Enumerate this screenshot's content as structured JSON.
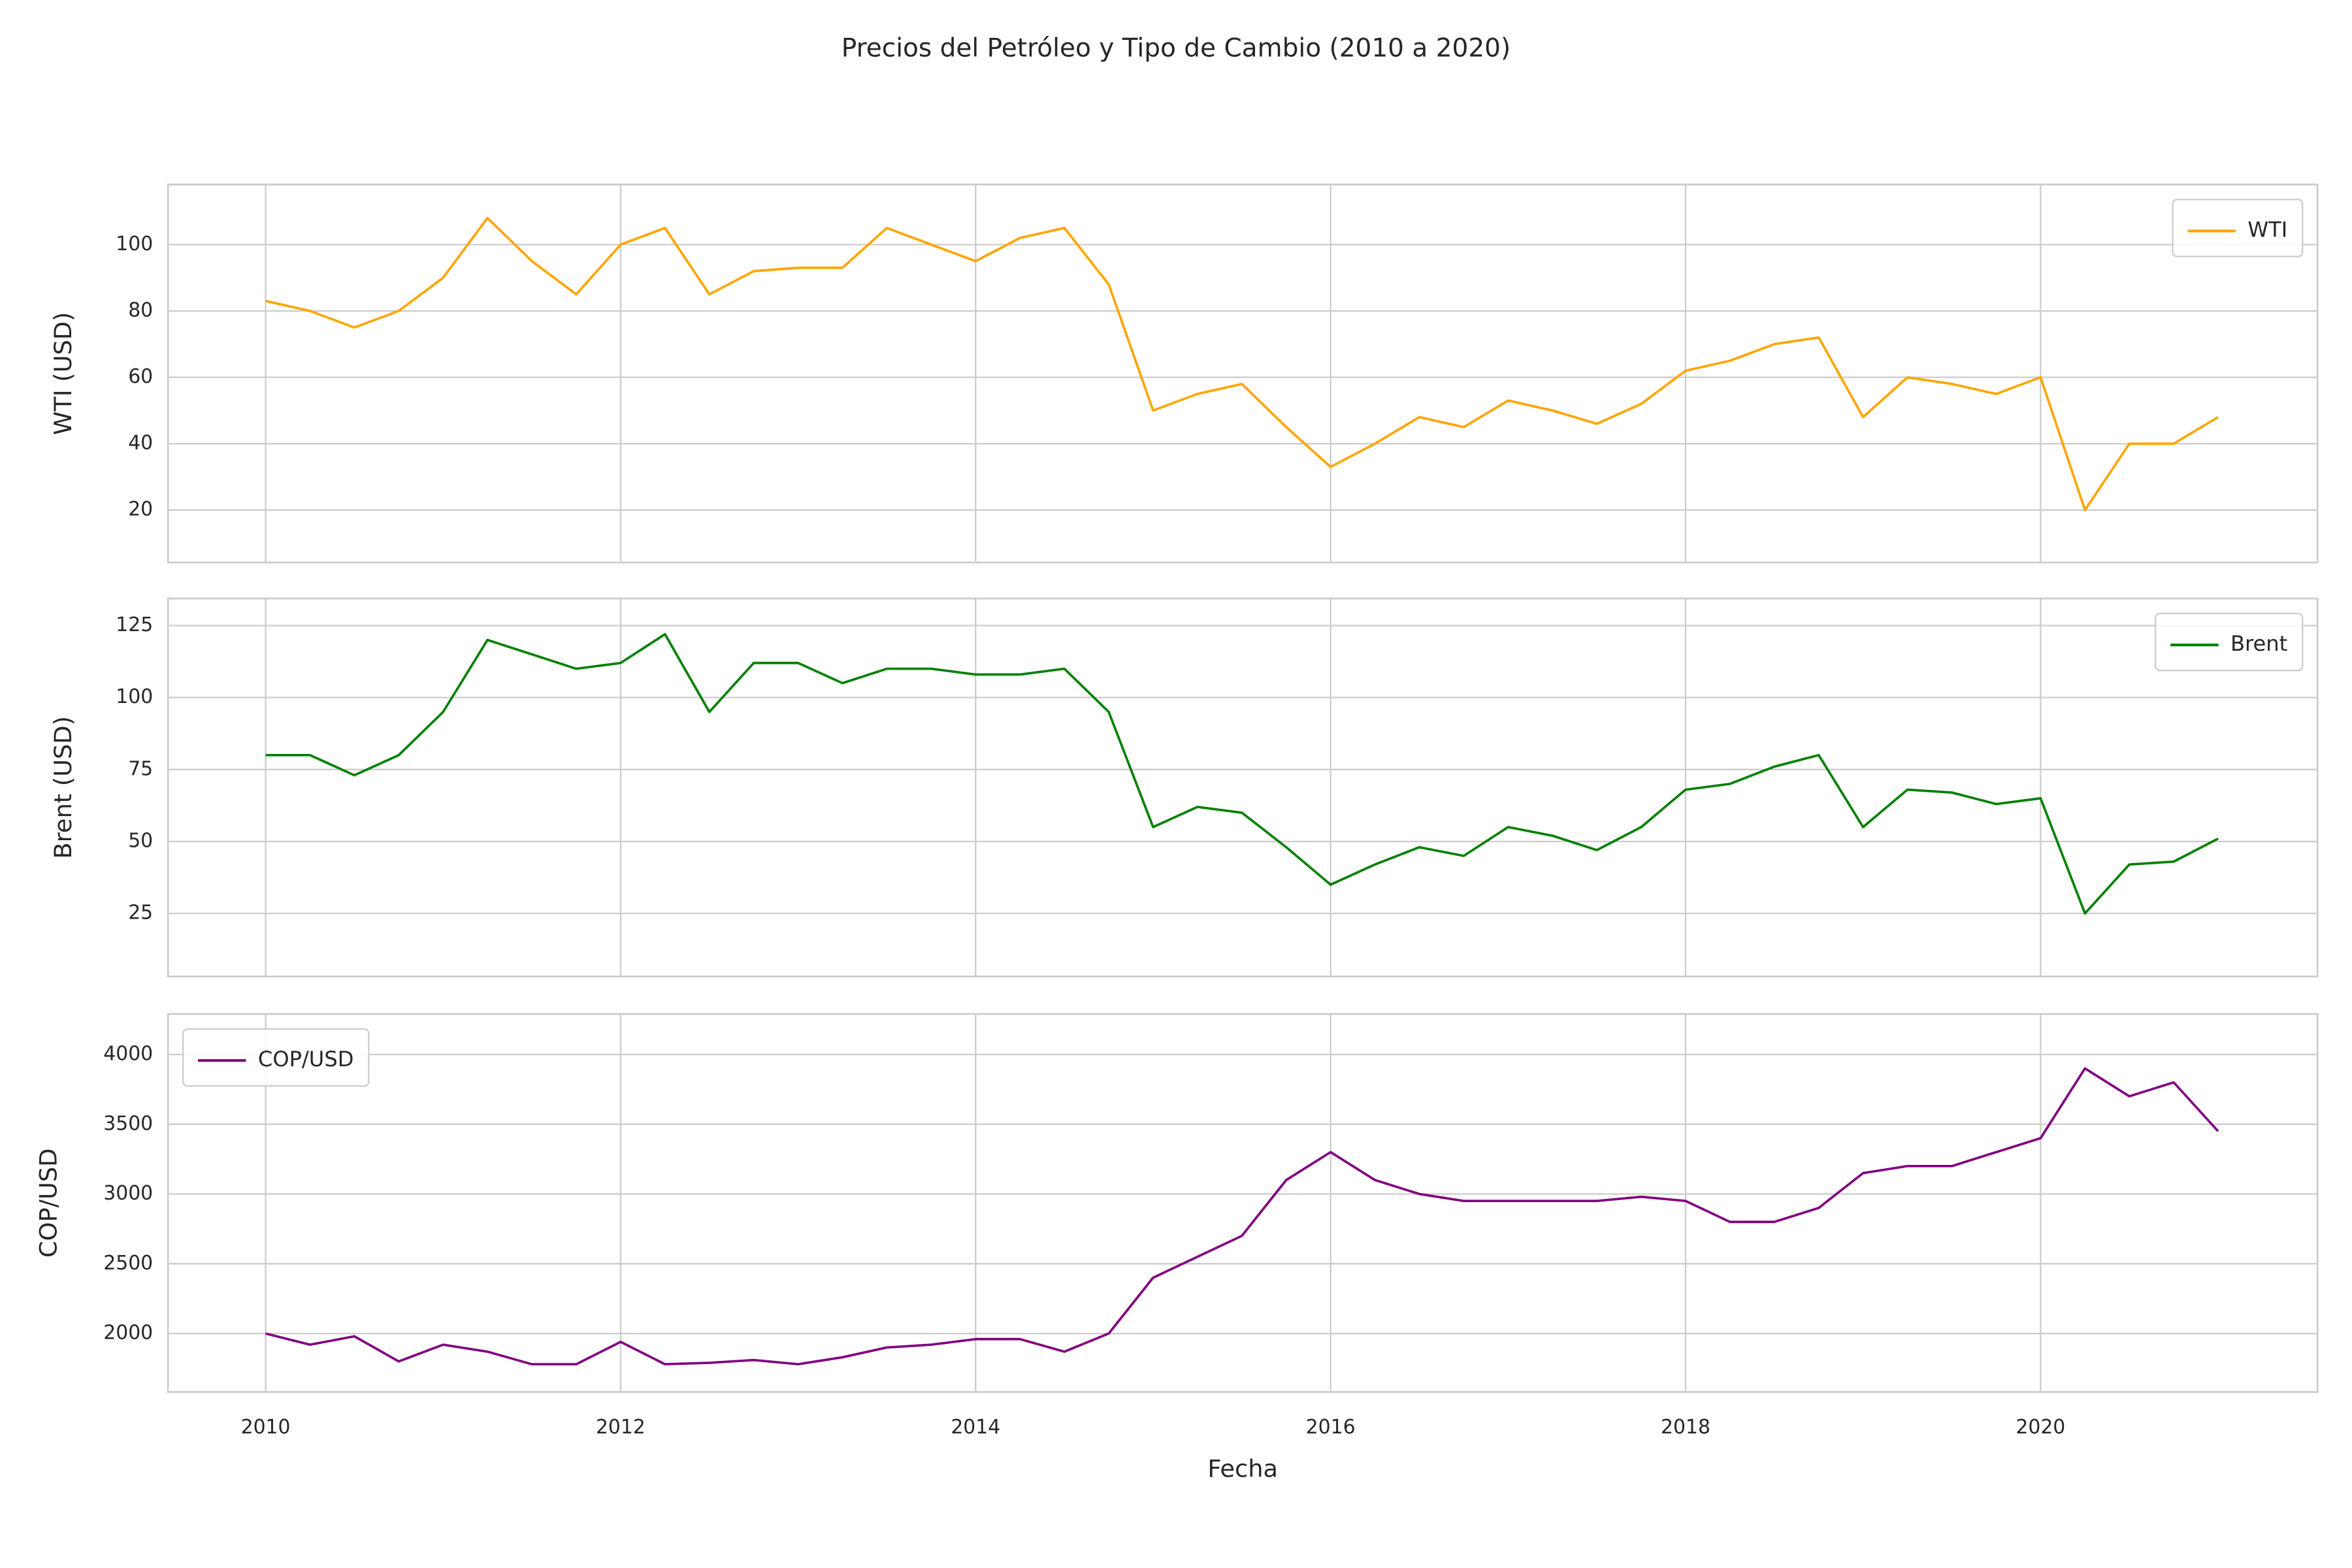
{
  "title": "Precios del Petróleo y Tipo de Cambio (2010 a 2020)",
  "chart_data": [
    {
      "type": "line",
      "ylabel": "WTI (USD)",
      "legend": "upper right",
      "grid": true,
      "xlim": [
        2009.45,
        2021.56
      ],
      "xticks": [
        2010,
        2012,
        2014,
        2016,
        2018,
        2020
      ],
      "ylim": [
        4.2,
        118.1
      ],
      "yticks": [
        20,
        40,
        60,
        80,
        100
      ],
      "x": [
        2010,
        2010.25,
        2010.5,
        2010.75,
        2011,
        2011.25,
        2011.5,
        2011.75,
        2012,
        2012.25,
        2012.5,
        2012.75,
        2013,
        2013.25,
        2013.5,
        2013.75,
        2014,
        2014.25,
        2014.5,
        2014.75,
        2015,
        2015.25,
        2015.5,
        2015.75,
        2016,
        2016.25,
        2016.5,
        2016.75,
        2017,
        2017.25,
        2017.5,
        2017.75,
        2018,
        2018.25,
        2018.5,
        2018.75,
        2019,
        2019.25,
        2019.5,
        2019.75,
        2020,
        2020.25,
        2020.5,
        2020.75,
        2021
      ],
      "series": [
        {
          "name": "WTI",
          "color": "#ffa500",
          "values": [
            83,
            80,
            75,
            80,
            90,
            108,
            95,
            85,
            100,
            105,
            85,
            92,
            93,
            93,
            105,
            100,
            95,
            102,
            105,
            88,
            50,
            55,
            58,
            45,
            33,
            40,
            48,
            45,
            53,
            50,
            46,
            52,
            62,
            65,
            70,
            72,
            48,
            60,
            58,
            55,
            60,
            20,
            40,
            40,
            48
          ]
        }
      ]
    },
    {
      "type": "line",
      "ylabel": "Brent (USD)",
      "legend": "upper right",
      "grid": true,
      "xlim": [
        2009.45,
        2021.56
      ],
      "xticks": [
        2010,
        2012,
        2014,
        2016,
        2018,
        2020
      ],
      "ylim": [
        3.1,
        134.4
      ],
      "yticks": [
        25,
        50,
        75,
        100,
        125
      ],
      "x": [
        2010,
        2010.25,
        2010.5,
        2010.75,
        2011,
        2011.25,
        2011.5,
        2011.75,
        2012,
        2012.25,
        2012.5,
        2012.75,
        2013,
        2013.25,
        2013.5,
        2013.75,
        2014,
        2014.25,
        2014.5,
        2014.75,
        2015,
        2015.25,
        2015.5,
        2015.75,
        2016,
        2016.25,
        2016.5,
        2016.75,
        2017,
        2017.25,
        2017.5,
        2017.75,
        2018,
        2018.25,
        2018.5,
        2018.75,
        2019,
        2019.25,
        2019.5,
        2019.75,
        2020,
        2020.25,
        2020.5,
        2020.75,
        2021
      ],
      "series": [
        {
          "name": "Brent",
          "color": "#008000",
          "values": [
            80,
            80,
            73,
            80,
            95,
            120,
            115,
            110,
            112,
            122,
            95,
            112,
            112,
            105,
            110,
            110,
            108,
            108,
            110,
            95,
            55,
            62,
            60,
            48,
            35,
            42,
            48,
            45,
            55,
            52,
            47,
            55,
            68,
            70,
            76,
            80,
            55,
            68,
            67,
            63,
            65,
            25,
            42,
            43,
            51
          ]
        }
      ]
    },
    {
      "type": "line",
      "ylabel": "COP/USD",
      "xlabel": "Fecha",
      "legend": "upper left",
      "grid": true,
      "xlim": [
        2009.45,
        2021.56
      ],
      "xticks": [
        2010,
        2012,
        2014,
        2016,
        2018,
        2020
      ],
      "ylim": [
        1581,
        4290
      ],
      "yticks": [
        2000,
        2500,
        3000,
        3500,
        4000
      ],
      "x": [
        2010,
        2010.25,
        2010.5,
        2010.75,
        2011,
        2011.25,
        2011.5,
        2011.75,
        2012,
        2012.25,
        2012.5,
        2012.75,
        2013,
        2013.25,
        2013.5,
        2013.75,
        2014,
        2014.25,
        2014.5,
        2014.75,
        2015,
        2015.25,
        2015.5,
        2015.75,
        2016,
        2016.25,
        2016.5,
        2016.75,
        2017,
        2017.25,
        2017.5,
        2017.75,
        2018,
        2018.25,
        2018.5,
        2018.75,
        2019,
        2019.25,
        2019.5,
        2019.75,
        2020,
        2020.25,
        2020.5,
        2020.75,
        2021
      ],
      "series": [
        {
          "name": "COP/USD",
          "color": "#800080",
          "values": [
            2000,
            1920,
            1980,
            1800,
            1920,
            1870,
            1780,
            1780,
            1940,
            1780,
            1790,
            1810,
            1780,
            1830,
            1900,
            1920,
            1960,
            1960,
            1870,
            2000,
            2400,
            2550,
            2700,
            3100,
            3300,
            3100,
            3000,
            2950,
            2950,
            2950,
            2950,
            2980,
            2950,
            2800,
            2800,
            2900,
            3150,
            3200,
            3200,
            3300,
            3400,
            3900,
            3700,
            3800,
            3450
          ]
        }
      ]
    }
  ]
}
